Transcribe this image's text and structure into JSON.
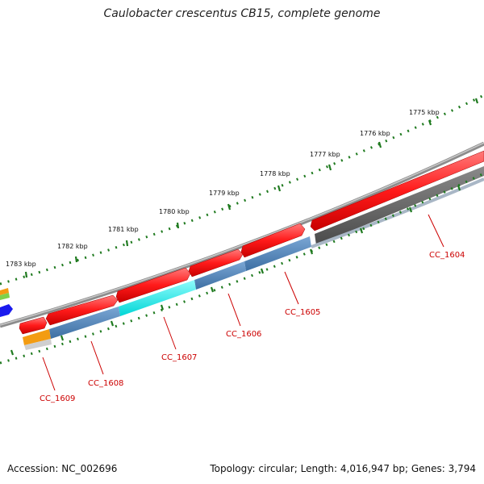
{
  "title": "Caulobacter crescentus CB15, complete genome",
  "footer": {
    "accession": "Accession: NC_002696",
    "summary": "Topology: circular; Length: 4,016,947 bp; Genes: 3,794"
  },
  "scale_labels": [
    "1775 kbp",
    "1776 kbp",
    "1777 kbp",
    "1778 kbp",
    "1779 kbp",
    "1780 kbp",
    "1781 kbp",
    "1782 kbp",
    "1783 kbp"
  ],
  "gene_labels": [
    "CC_1604",
    "CC_1605",
    "CC_1606",
    "CC_1607",
    "CC_1608",
    "CC_1609"
  ],
  "colors": {
    "cds": "#ff1a1a",
    "gene_blue": "#4a7fb5",
    "gene_cyan": "#11f0f0",
    "gene_gray": "#5e5e5e",
    "backbone": "#8c8c8c",
    "tick": "#1f7a1f",
    "label": "#cc0000"
  }
}
